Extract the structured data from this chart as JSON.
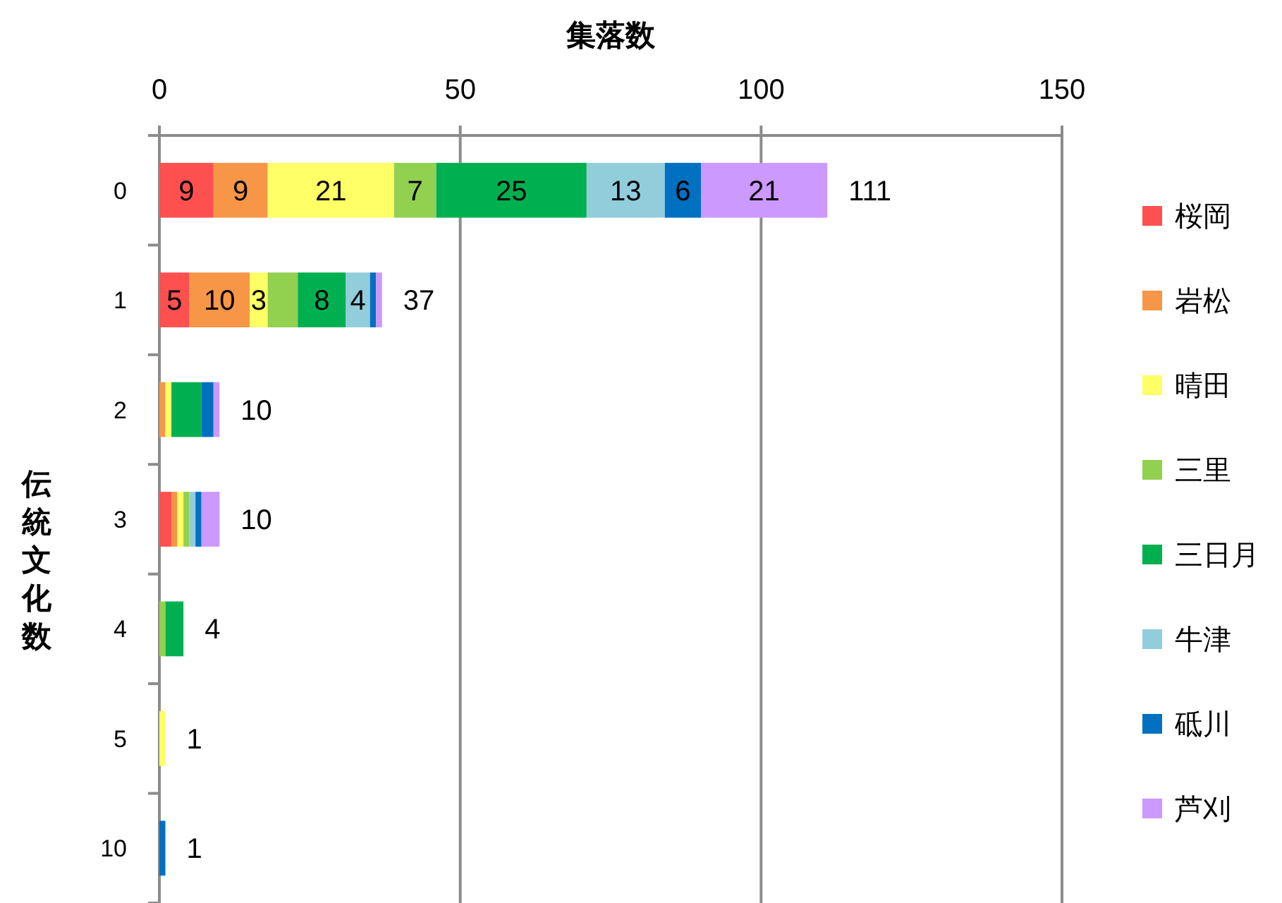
{
  "chart_data": {
    "type": "bar",
    "orientation": "horizontal",
    "stacked": true,
    "xlabel": "集落数",
    "ylabel": "伝統文化数",
    "categories": [
      "0",
      "1",
      "2",
      "3",
      "4",
      "5",
      "10"
    ],
    "xlim": [
      0,
      150
    ],
    "xticks": [
      0,
      50,
      100,
      150
    ],
    "grid": "x",
    "legend": "right",
    "series": [
      {
        "name": "桜岡",
        "color": "#ff5050",
        "values": [
          9,
          5,
          0,
          2,
          0,
          0,
          0
        ],
        "value_labels": [
          "9",
          "5",
          null,
          null,
          null,
          null,
          null
        ]
      },
      {
        "name": "岩松",
        "color": "#f79646",
        "values": [
          9,
          10,
          1,
          1,
          0,
          0,
          0
        ],
        "value_labels": [
          "9",
          "10",
          null,
          null,
          null,
          null,
          null
        ]
      },
      {
        "name": "晴田",
        "color": "#ffff66",
        "values": [
          21,
          3,
          1,
          1,
          0,
          1,
          0
        ],
        "value_labels": [
          "21",
          "3",
          null,
          null,
          null,
          null,
          null
        ]
      },
      {
        "name": "三里",
        "color": "#92d050",
        "values": [
          7,
          5,
          0,
          1,
          1,
          0,
          0
        ],
        "value_labels": [
          "7",
          null,
          null,
          null,
          null,
          null,
          null
        ]
      },
      {
        "name": "三日月",
        "color": "#00b050",
        "values": [
          25,
          8,
          5,
          0,
          3,
          0,
          0
        ],
        "value_labels": [
          "25",
          "8",
          null,
          null,
          null,
          null,
          null
        ]
      },
      {
        "name": "牛津",
        "color": "#92cddc",
        "values": [
          13,
          4,
          0,
          1,
          0,
          0,
          0
        ],
        "value_labels": [
          "13",
          "4",
          null,
          null,
          null,
          null,
          null
        ]
      },
      {
        "name": "砥川",
        "color": "#0070c0",
        "values": [
          6,
          1,
          2,
          1,
          0,
          0,
          1
        ],
        "value_labels": [
          "6",
          null,
          null,
          null,
          null,
          null,
          null
        ]
      },
      {
        "name": "芦刈",
        "color": "#cc99ff",
        "values": [
          21,
          1,
          1,
          3,
          0,
          0,
          0
        ],
        "value_labels": [
          "21",
          null,
          null,
          null,
          null,
          null,
          null
        ]
      }
    ],
    "totals": [
      "111",
      "37",
      "10",
      "10",
      "4",
      "1",
      "1"
    ]
  }
}
